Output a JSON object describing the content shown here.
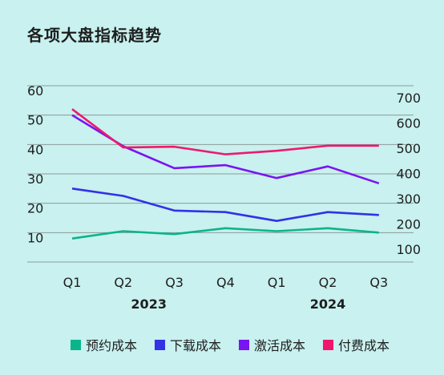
{
  "chart_data": {
    "type": "line",
    "title": "各项大盘指标趋势",
    "categories": [
      "Q1",
      "Q2",
      "Q3",
      "Q4",
      "Q1",
      "Q2",
      "Q3"
    ],
    "year_groups": [
      {
        "label": "2023",
        "from": 0,
        "to": 3
      },
      {
        "label": "2024",
        "from": 4,
        "to": 6
      }
    ],
    "left_axis": {
      "ticks": [
        10,
        20,
        30,
        40,
        50,
        60
      ],
      "range": [
        0,
        60
      ]
    },
    "right_axis": {
      "ticks": [
        100,
        200,
        300,
        400,
        500,
        600,
        700
      ],
      "range": [
        0,
        700
      ]
    },
    "grid": true,
    "legend_position": "bottom",
    "series": [
      {
        "name": "预约成本",
        "color": "#0bb58c",
        "axis": "left",
        "values": [
          8,
          10.5,
          9.5,
          11.5,
          10.5,
          11.5,
          10
        ]
      },
      {
        "name": "下载成本",
        "color": "#3232e6",
        "axis": "left",
        "values": [
          25,
          22.5,
          17.5,
          17,
          14,
          17,
          16
        ]
      },
      {
        "name": "激活成本",
        "color": "#7a14f0",
        "axis": "right",
        "values": [
          631,
          508,
          421,
          433,
          382,
          428,
          361
        ]
      },
      {
        "name": "付费成本",
        "color": "#f0186e",
        "axis": "right",
        "values": [
          655,
          503,
          506,
          476,
          490,
          510,
          510
        ]
      }
    ]
  }
}
